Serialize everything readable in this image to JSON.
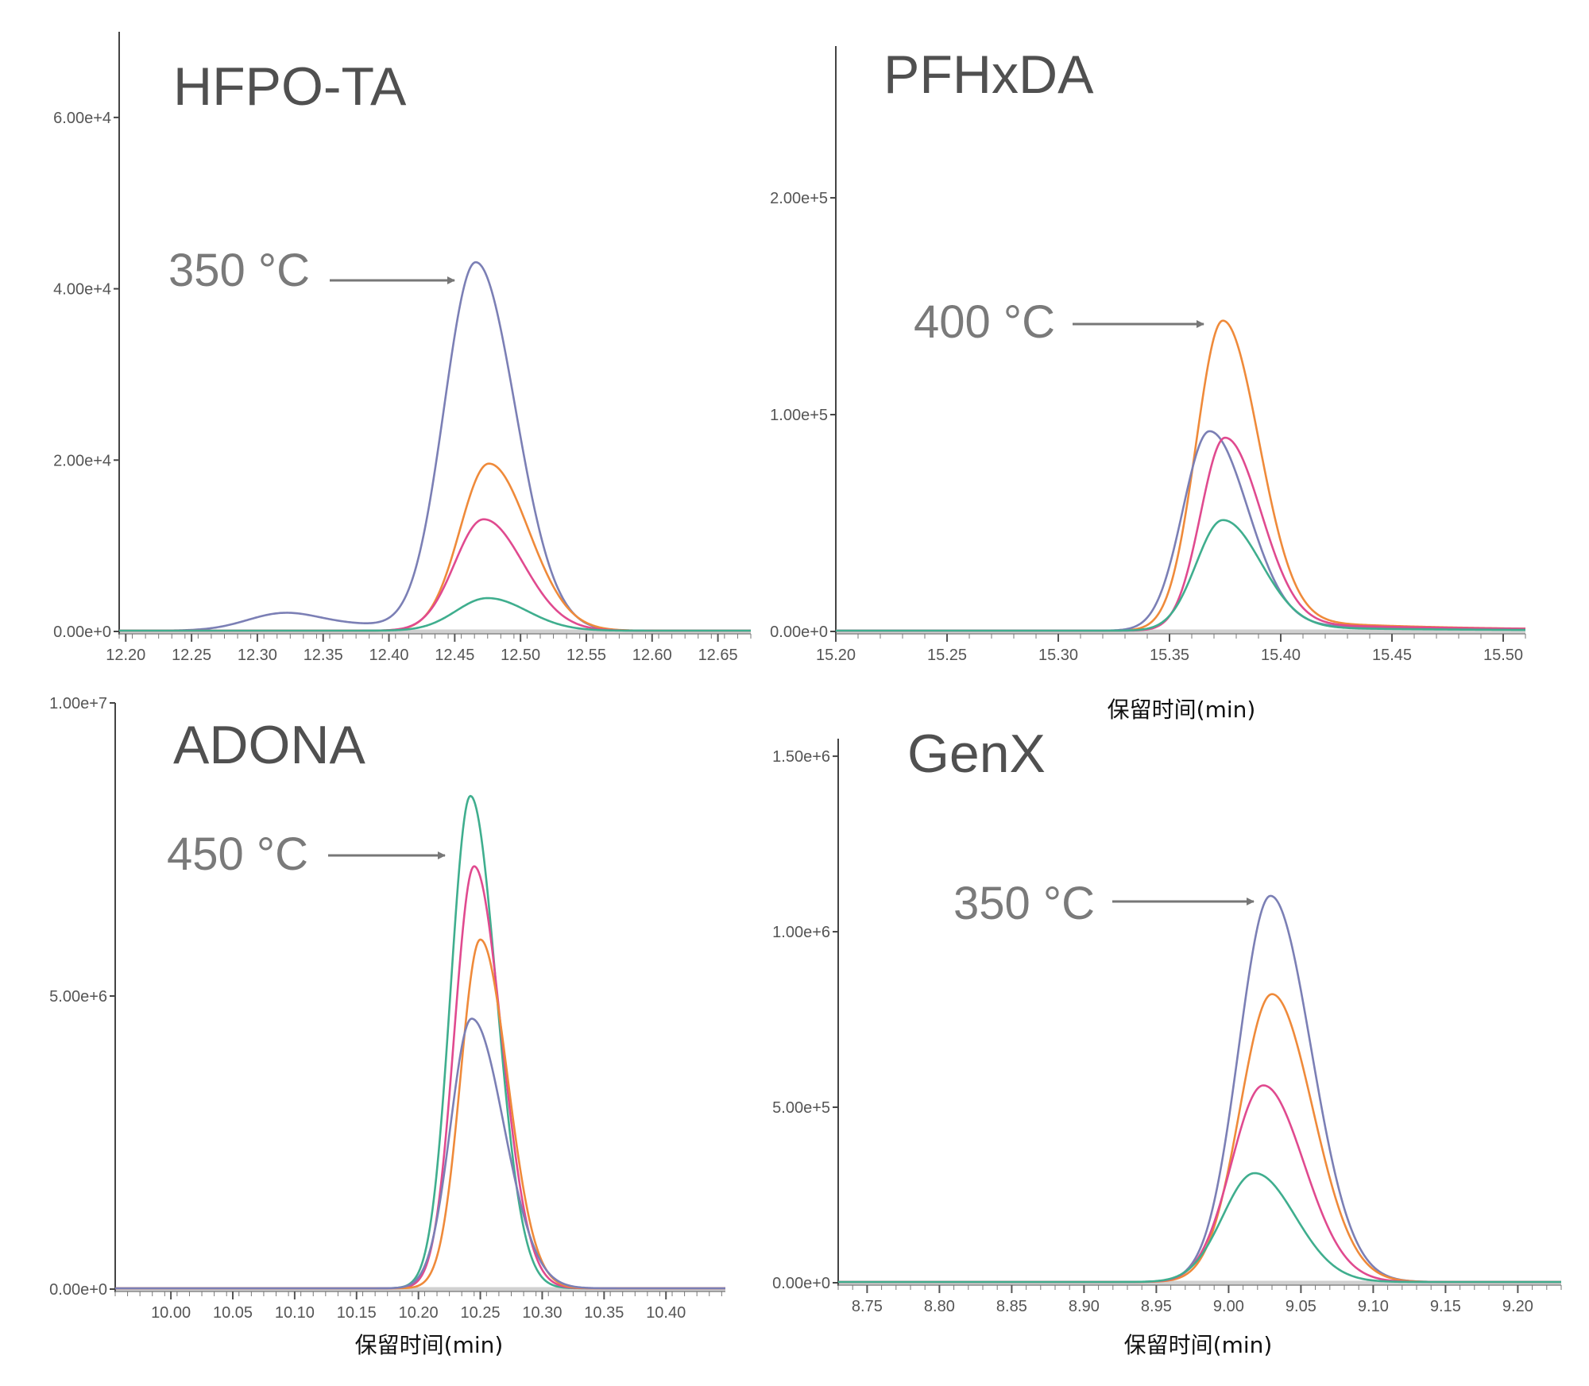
{
  "xlabel": "保留时间(min)",
  "colors": {
    "purple": "#7b7fb5",
    "orange": "#ef8a3a",
    "pink": "#e04a8f",
    "green": "#3fae8e",
    "axis": "#444444",
    "arrow": "#777777"
  },
  "chart_data": [
    {
      "type": "line",
      "title": "HFPO-TA",
      "xlabel": "",
      "annotation": "350 °C",
      "xlim": [
        12.195,
        12.675
      ],
      "ylim": [
        0,
        70000
      ],
      "xticks": [
        12.2,
        12.25,
        12.3,
        12.35,
        12.4,
        12.45,
        12.5,
        12.55,
        12.6,
        12.65
      ],
      "xtick_labels": [
        "12.20",
        "12.25",
        "12.30",
        "12.35",
        "12.40",
        "12.45",
        "12.50",
        "12.55",
        "12.60",
        "12.65"
      ],
      "yticks": [
        0,
        20000,
        40000,
        60000
      ],
      "ytick_labels": [
        "0.00e+0",
        "2.00e+4",
        "4.00e+4",
        "6.00e+4"
      ],
      "series": [
        {
          "color": "#7b7fb5",
          "peak_x": 12.466,
          "peak_y": 43000,
          "sigma_l": 0.024,
          "sigma_r": 0.03,
          "bump_x": 12.32,
          "bump_y": 2000
        },
        {
          "color": "#ef8a3a",
          "peak_x": 12.476,
          "peak_y": 19500,
          "sigma_l": 0.022,
          "sigma_r": 0.03
        },
        {
          "color": "#e04a8f",
          "peak_x": 12.472,
          "peak_y": 13000,
          "sigma_l": 0.022,
          "sigma_r": 0.03
        },
        {
          "color": "#3fae8e",
          "peak_x": 12.475,
          "peak_y": 3800,
          "sigma_l": 0.024,
          "sigma_r": 0.03
        }
      ]
    },
    {
      "type": "line",
      "title": "PFHxDA",
      "xlabel": "保留时间(min)",
      "annotation": "400 °C",
      "xlim": [
        15.2,
        15.51
      ],
      "ylim": [
        0,
        270000
      ],
      "xticks": [
        15.2,
        15.25,
        15.3,
        15.35,
        15.4,
        15.45,
        15.5
      ],
      "xtick_labels": [
        "15.20",
        "15.25",
        "15.30",
        "15.35",
        "15.40",
        "15.45",
        "15.50"
      ],
      "yticks": [
        0,
        100000,
        200000
      ],
      "ytick_labels": [
        "0.00e+0",
        "1.00e+5",
        "2.00e+5"
      ],
      "series": [
        {
          "color": "#ef8a3a",
          "peak_x": 15.374,
          "peak_y": 143000,
          "sigma_l": 0.012,
          "sigma_r": 0.016,
          "tail": 0.07
        },
        {
          "color": "#7b7fb5",
          "peak_x": 15.368,
          "peak_y": 92000,
          "sigma_l": 0.012,
          "sigma_r": 0.017,
          "tail": 0.07
        },
        {
          "color": "#e04a8f",
          "peak_x": 15.375,
          "peak_y": 89000,
          "sigma_l": 0.011,
          "sigma_r": 0.016,
          "tail": 0.09
        },
        {
          "color": "#3fae8e",
          "peak_x": 15.374,
          "peak_y": 51000,
          "sigma_l": 0.012,
          "sigma_r": 0.017,
          "tail": 0.07
        }
      ]
    },
    {
      "type": "line",
      "title": "ADONA",
      "xlabel": "保留时间(min)",
      "annotation": "450 °C",
      "xlim": [
        9.955,
        10.448
      ],
      "ylim": [
        0,
        10000000
      ],
      "xticks": [
        10.0,
        10.05,
        10.1,
        10.15,
        10.2,
        10.25,
        10.3,
        10.35,
        10.4
      ],
      "xtick_labels": [
        "10.00",
        "10.05",
        "10.10",
        "10.15",
        "10.20",
        "10.25",
        "10.30",
        "10.35",
        "10.40"
      ],
      "yticks": [
        0,
        5000000,
        10000000
      ],
      "ytick_labels": [
        "0.00e+0",
        "5.00e+6",
        "1.00e+7"
      ],
      "series": [
        {
          "color": "#3fae8e",
          "peak_x": 10.242,
          "peak_y": 8400000,
          "sigma_l": 0.016,
          "sigma_r": 0.021
        },
        {
          "color": "#e04a8f",
          "peak_x": 10.245,
          "peak_y": 7200000,
          "sigma_l": 0.016,
          "sigma_r": 0.022
        },
        {
          "color": "#ef8a3a",
          "peak_x": 10.25,
          "peak_y": 5950000,
          "sigma_l": 0.016,
          "sigma_r": 0.022
        },
        {
          "color": "#7b7fb5",
          "peak_x": 10.243,
          "peak_y": 4600000,
          "sigma_l": 0.017,
          "sigma_r": 0.026
        }
      ]
    },
    {
      "type": "line",
      "title": "GenX",
      "xlabel": "保留时间(min)",
      "annotation": "350 °C",
      "xlim": [
        8.73,
        9.23
      ],
      "ylim": [
        0,
        1550000
      ],
      "xticks": [
        8.75,
        8.8,
        8.85,
        8.9,
        8.95,
        9.0,
        9.05,
        9.1,
        9.15,
        9.2
      ],
      "xtick_labels": [
        "8.75",
        "8.80",
        "8.85",
        "8.90",
        "8.95",
        "9.00",
        "9.05",
        "9.10",
        "9.15",
        "9.20"
      ],
      "yticks": [
        0,
        500000,
        1000000,
        1500000
      ],
      "ytick_labels": [
        "0.00e+0",
        "5.00e+5",
        "1.00e+6",
        "1.50e+6"
      ],
      "series": [
        {
          "color": "#7b7fb5",
          "peak_x": 9.029,
          "peak_y": 1100000,
          "sigma_l": 0.022,
          "sigma_r": 0.028
        },
        {
          "color": "#ef8a3a",
          "peak_x": 9.03,
          "peak_y": 820000,
          "sigma_l": 0.022,
          "sigma_r": 0.028
        },
        {
          "color": "#e04a8f",
          "peak_x": 9.024,
          "peak_y": 560000,
          "sigma_l": 0.022,
          "sigma_r": 0.028
        },
        {
          "color": "#3fae8e",
          "peak_x": 9.018,
          "peak_y": 310000,
          "sigma_l": 0.022,
          "sigma_r": 0.028
        }
      ]
    }
  ]
}
